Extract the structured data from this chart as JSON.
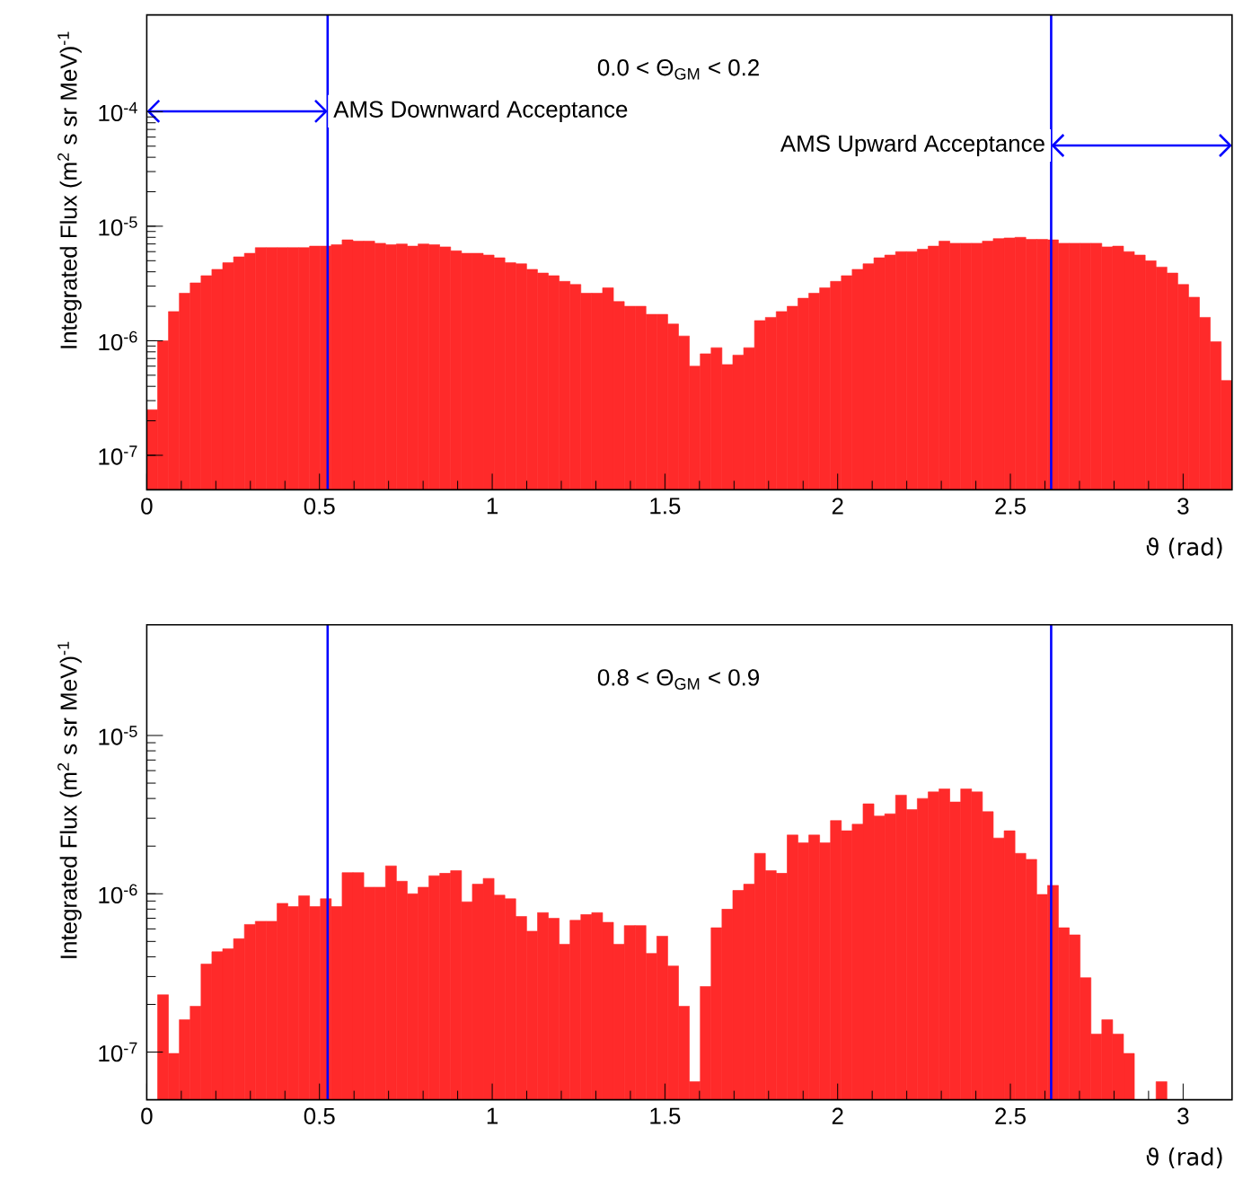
{
  "chart_data": [
    {
      "type": "histogram",
      "title": "0.0 < Θ$_{GM}$ < 0.2",
      "xlabel": "ϑ (rad)",
      "ylabel": "Integrated Flux (m$^{2}$ s sr MeV)$^{-1}$",
      "color": "#ff2a2a",
      "log": true,
      "bins": [
        0,
        0.0314,
        0.0628,
        0.0942,
        0.1257,
        0.1571,
        0.1885,
        0.2199,
        0.2513,
        0.2827,
        0.3142,
        0.3456,
        0.377,
        0.4084,
        0.4398,
        0.4712,
        0.5027,
        0.5341,
        0.5655,
        0.5969,
        0.6283,
        0.6597,
        0.6912,
        0.7226,
        0.754,
        0.7854,
        0.8168,
        0.8482,
        0.8796,
        0.9111,
        0.9425,
        0.9739,
        1.0053,
        1.0367,
        1.0681,
        1.0996,
        1.131,
        1.1624,
        1.1938,
        1.2252,
        1.2566,
        1.2881,
        1.3195,
        1.3509,
        1.3823,
        1.4137,
        1.4451,
        1.4765,
        1.508,
        1.5394,
        1.5708,
        1.6022,
        1.6336,
        1.665,
        1.6965,
        1.7279,
        1.7593,
        1.7907,
        1.8221,
        1.8535,
        1.885,
        1.9164,
        1.9478,
        1.9792,
        2.0106,
        2.042,
        2.0735,
        2.1049,
        2.1363,
        2.1677,
        2.1991,
        2.2305,
        2.2619,
        2.2934,
        2.3248,
        2.3562,
        2.3876,
        2.419,
        2.4504,
        2.4819,
        2.5133,
        2.5447,
        2.5761,
        2.6075,
        2.6389,
        2.6704,
        2.7018,
        2.7332,
        2.7646,
        2.796,
        2.8274,
        2.8588,
        2.8903,
        2.9217,
        2.9531,
        2.9845,
        3.0159,
        3.0473,
        3.0788,
        3.1102,
        3.1416
      ],
      "values": [
        2.5e-07,
        1e-06,
        1.8e-06,
        2.6e-06,
        3.2e-06,
        3.7e-06,
        4.2e-06,
        4.8e-06,
        5.4e-06,
        5.8e-06,
        6.5e-06,
        6.5e-06,
        6.5e-06,
        6.5e-06,
        6.5e-06,
        6.7e-06,
        6.7e-06,
        6.9e-06,
        7.6e-06,
        7.4e-06,
        7.4e-06,
        7.1e-06,
        6.9e-06,
        7e-06,
        6.7e-06,
        7e-06,
        6.9e-06,
        6.6e-06,
        6.1e-06,
        5.8e-06,
        5.8e-06,
        5.6e-06,
        5.3e-06,
        4.8e-06,
        4.7e-06,
        4.2e-06,
        3.9e-06,
        3.7e-06,
        3.3e-06,
        3.1e-06,
        2.6e-06,
        2.6e-06,
        2.9e-06,
        2.2e-06,
        2e-06,
        2e-06,
        1.7e-06,
        1.7e-06,
        1.4e-06,
        1.1e-06,
        6e-07,
        7.7e-07,
        8.7e-07,
        6.2e-07,
        7.5e-07,
        8.7e-07,
        1.5e-06,
        1.6e-06,
        1.8e-06,
        2e-06,
        2.35e-06,
        2.6e-06,
        2.9e-06,
        3.3e-06,
        3.7e-06,
        4.2e-06,
        4.7e-06,
        5.3e-06,
        5.6e-06,
        6e-06,
        6e-06,
        6.3e-06,
        6.7e-06,
        7.4e-06,
        7.1e-06,
        7.1e-06,
        7.1e-06,
        7.4e-06,
        7.8e-06,
        7.9e-06,
        8e-06,
        7.7e-06,
        7.7e-06,
        7.6e-06,
        7.1e-06,
        7.1e-06,
        7.1e-06,
        7.1e-06,
        6.6e-06,
        6.7e-06,
        6e-06,
        5.6e-06,
        5e-06,
        4.4e-06,
        3.9e-06,
        3.1e-06,
        2.4e-06,
        1.6e-06,
        9.8e-07,
        4.5e-07
      ],
      "xlim": [
        0,
        3.1416
      ],
      "ylim": [
        5e-08,
        0.0007
      ],
      "xticks": [
        0,
        0.5,
        1,
        1.5,
        2,
        2.5,
        3
      ],
      "yticks": [
        {
          "value": 1e-07,
          "label": "10$^{-7}$"
        },
        {
          "value": 1e-06,
          "label": "10$^{-6}$"
        },
        {
          "value": 1e-05,
          "label": "10$^{-5}$"
        },
        {
          "value": 0.0001,
          "label": "10$^{-4}$"
        }
      ],
      "ref_lines": [
        {
          "axis": "x",
          "value": 0.5236,
          "color": "#0000ff"
        },
        {
          "axis": "x",
          "value": 2.618,
          "color": "#0000ff"
        }
      ],
      "annotations": [
        "AMS Downward Acceptance",
        "AMS Upward Acceptance"
      ]
    },
    {
      "type": "histogram",
      "title": "0.8 < Θ$_{GM}$ < 0.9",
      "xlabel": "ϑ (rad)",
      "ylabel": "Integrated Flux (m$^{2}$ s sr MeV)$^{-1}$",
      "color": "#ff2a2a",
      "log": true,
      "bins": [
        0,
        0.0314,
        0.0628,
        0.0942,
        0.1257,
        0.1571,
        0.1885,
        0.2199,
        0.2513,
        0.2827,
        0.3142,
        0.3456,
        0.377,
        0.4084,
        0.4398,
        0.4712,
        0.5027,
        0.5341,
        0.5655,
        0.5969,
        0.6283,
        0.6597,
        0.6912,
        0.7226,
        0.754,
        0.7854,
        0.8168,
        0.8482,
        0.8796,
        0.9111,
        0.9425,
        0.9739,
        1.0053,
        1.0367,
        1.0681,
        1.0996,
        1.131,
        1.1624,
        1.1938,
        1.2252,
        1.2566,
        1.2881,
        1.3195,
        1.3509,
        1.3823,
        1.4137,
        1.4451,
        1.4765,
        1.508,
        1.5394,
        1.5708,
        1.6022,
        1.6336,
        1.665,
        1.6965,
        1.7279,
        1.7593,
        1.7907,
        1.8221,
        1.8535,
        1.885,
        1.9164,
        1.9478,
        1.9792,
        2.0106,
        2.042,
        2.0735,
        2.1049,
        2.1363,
        2.1677,
        2.1991,
        2.2305,
        2.2619,
        2.2934,
        2.3248,
        2.3562,
        2.3876,
        2.419,
        2.4504,
        2.4819,
        2.5133,
        2.5447,
        2.5761,
        2.6075,
        2.6389,
        2.6704,
        2.7018,
        2.7332,
        2.7646,
        2.796,
        2.8274,
        2.8588,
        2.8903,
        2.9217,
        2.9531,
        2.9845,
        3.0159,
        3.0473,
        3.0788,
        3.1102,
        3.1416
      ],
      "values": [
        null,
        2.3e-07,
        9.8e-08,
        1.6e-07,
        1.95e-07,
        3.6e-07,
        4.3e-07,
        4.5e-07,
        5.2e-07,
        6.4e-07,
        6.7e-07,
        6.7e-07,
        8.7e-07,
        8.3e-07,
        9.7e-07,
        8.3e-07,
        9.3e-07,
        8.3e-07,
        1.36e-06,
        1.36e-06,
        1.1e-06,
        1.1e-06,
        1.5e-06,
        1.2e-06,
        1e-06,
        1.1e-06,
        1.3e-06,
        1.35e-06,
        1.4e-06,
        8.9e-07,
        1.15e-06,
        1.25e-06,
        9.8e-07,
        9.3e-07,
        7.2e-07,
        5.8e-07,
        7.6e-07,
        7e-07,
        4.8e-07,
        6.8e-07,
        7.4e-07,
        7.6e-07,
        6.6e-07,
        4.8e-07,
        6.3e-07,
        6.3e-07,
        4.2e-07,
        5.4e-07,
        3.5e-07,
        1.95e-07,
        6.5e-08,
        2.6e-07,
        6.1e-07,
        8e-07,
        1.05e-06,
        1.15e-06,
        1.8e-06,
        1.4e-06,
        1.35e-06,
        2.35e-06,
        2.1e-06,
        2.35e-06,
        2.1e-06,
        2.9e-06,
        2.5e-06,
        2.75e-06,
        3.7e-06,
        3.1e-06,
        3.2e-06,
        4.2e-06,
        3.4e-06,
        4e-06,
        4.4e-06,
        4.6e-06,
        3.8e-06,
        4.6e-06,
        4.4e-06,
        3.3e-06,
        2.25e-06,
        2.5e-06,
        1.8e-06,
        1.65e-06,
        9.9e-07,
        1.13e-06,
        6.1e-07,
        5.5e-07,
        2.95e-07,
        1.3e-07,
        1.6e-07,
        1.3e-07,
        9.8e-08,
        null,
        null,
        6.5e-08,
        null,
        null,
        null,
        null,
        null,
        null
      ],
      "xlim": [
        0,
        3.1416
      ],
      "ylim": [
        5e-08,
        5e-05
      ],
      "xticks": [
        0,
        0.5,
        1,
        1.5,
        2,
        2.5,
        3
      ],
      "yticks": [
        {
          "value": 1e-07,
          "label": "10$^{-7}$"
        },
        {
          "value": 1e-06,
          "label": "10$^{-6}$"
        },
        {
          "value": 1e-05,
          "label": "10$^{-5}$"
        }
      ],
      "ref_lines": [
        {
          "axis": "x",
          "value": 0.5236,
          "color": "#0000ff"
        },
        {
          "axis": "x",
          "value": 2.618,
          "color": "#0000ff"
        }
      ]
    }
  ]
}
